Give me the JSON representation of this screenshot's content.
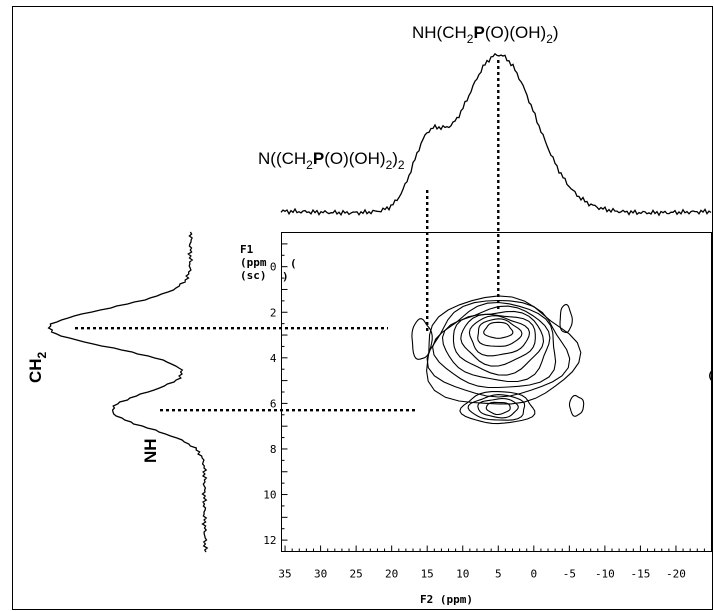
{
  "chart_data": {
    "type": "contour",
    "top_projection": {
      "peaks": [
        {
          "ppm": 15,
          "intensity": 0.34,
          "label_prefix": "N((CH",
          "label_sub1": "2",
          "label_bold": "P",
          "label_mid": "(O)(OH)",
          "label_sub2": "2",
          "label_end": ")",
          "label_sub3": "2"
        },
        {
          "ppm": 5,
          "intensity": 1.0,
          "label_prefix": "NH(CH",
          "label_sub1": "2",
          "label_bold": "P",
          "label_mid": "(O)(OH)",
          "label_sub2": "2",
          "label_end": ")"
        }
      ]
    },
    "side_projection": {
      "peaks": [
        {
          "ppm": 2.7,
          "intensity": 1.0,
          "label": "CH",
          "label_sub": "2"
        },
        {
          "ppm": 6.3,
          "intensity": 0.62,
          "label": "NH"
        }
      ]
    },
    "f1_axis": {
      "label_lines": [
        "F1",
        "(ppm",
        "(sc)"
      ],
      "range": [
        -1.5,
        12.5
      ],
      "ticks": [
        0,
        2,
        4,
        6,
        8,
        10,
        12
      ]
    },
    "f2_axis": {
      "label": "F2 (ppm)",
      "range": [
        35.5,
        -25
      ],
      "ticks": [
        35,
        30,
        25,
        20,
        15,
        10,
        5,
        0,
        -5,
        -10,
        -15,
        -20
      ]
    },
    "stray_marks": [
      "(",
      ")",
      "("
    ],
    "contours": {
      "main_center": [
        5,
        2.8
      ],
      "secondary_center": [
        5,
        6.2
      ],
      "levels": 9
    }
  }
}
